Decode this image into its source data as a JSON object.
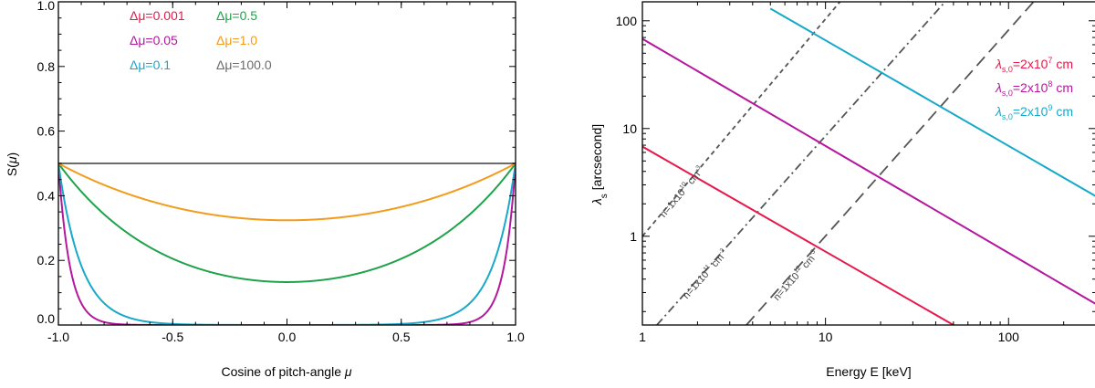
{
  "chart_data": [
    {
      "type": "line",
      "xlabel_text": "Cosine of pitch-angle ",
      "xlabel_symbol": "μ",
      "ylabel_text": "S(",
      "ylabel_symbol": "μ",
      "ylabel_close": ")",
      "xlim": [
        -1.0,
        1.0
      ],
      "ylim": [
        0.0,
        1.0
      ],
      "xscale": "linear",
      "yscale": "linear",
      "xticks": [
        -1.0,
        -0.5,
        0.0,
        0.5,
        1.0
      ],
      "xtick_labels": [
        "-1.0",
        "-0.5",
        "0.0",
        "0.5",
        "1.0"
      ],
      "yticks": [
        0.0,
        0.2,
        0.4,
        0.6,
        0.8,
        1.0
      ],
      "ytick_labels": [
        "0.0",
        "0.2",
        "0.4",
        "0.6",
        "0.8",
        "1.0"
      ],
      "grid": false,
      "legend_position": "top-center",
      "legend_symbol": "Δμ",
      "series": [
        {
          "name": "=0.001",
          "delta_mu": 0.001,
          "color": "#e6194b"
        },
        {
          "name": "=0.05",
          "delta_mu": 0.05,
          "color": "#b5179e"
        },
        {
          "name": "=0.1",
          "delta_mu": 0.1,
          "color": "#17a9c9"
        },
        {
          "name": "=0.5",
          "delta_mu": 0.5,
          "color": "#1ea34a"
        },
        {
          "name": "=1.0",
          "delta_mu": 1.0,
          "color": "#f29b1c"
        },
        {
          "name": "=100.0",
          "delta_mu": 100.0,
          "color": "#6b6b6b"
        }
      ]
    },
    {
      "type": "line",
      "xlabel": "Energy E [keV]",
      "ylabel_text": "[arcsecond]",
      "ylabel_symbol": "λ",
      "ylabel_sub": "s",
      "xlim": [
        1,
        300
      ],
      "ylim": [
        0.15,
        150
      ],
      "xscale": "log",
      "yscale": "log",
      "xticks": [
        1,
        10,
        100
      ],
      "xtick_labels": [
        "1",
        "10",
        "100"
      ],
      "yticks": [
        1,
        10,
        100
      ],
      "ytick_labels": [
        "1",
        "10",
        "100"
      ],
      "grid": false,
      "legend_position": "top-right",
      "series": [
        {
          "label_sym": "λ",
          "label_sub": "s,0",
          "label_text": "=2x10",
          "label_exp": "7",
          "label_unit": " cm",
          "color": "#e6194b",
          "points": [
            [
              1,
              6.8
            ],
            [
              50,
              0.15
            ]
          ]
        },
        {
          "label_sym": "λ",
          "label_sub": "s,0",
          "label_text": "=2x10",
          "label_exp": "8",
          "label_unit": " cm",
          "color": "#b5179e",
          "points": [
            [
              1,
              68
            ],
            [
              300,
              0.235
            ]
          ]
        },
        {
          "label_sym": "λ",
          "label_sub": "s,0",
          "label_text": "=2x10",
          "label_exp": "9",
          "label_unit": " cm",
          "color": "#17a9c9",
          "points": [
            [
              5,
              130
            ],
            [
              300,
              2.35
            ]
          ]
        }
      ],
      "density_lines": [
        {
          "text": "n=1x10",
          "exp": "10",
          "unit": " cm",
          "unit_exp": "-3",
          "dash": "5,4",
          "points": [
            [
              1,
              1.0
            ],
            [
              12,
              150
            ]
          ]
        },
        {
          "text": "n=1x10",
          "exp": "11",
          "unit": " cm",
          "unit_exp": "-3",
          "dash": "9,4,2,4",
          "points": [
            [
              1.2,
              0.15
            ],
            [
              45,
              150
            ]
          ]
        },
        {
          "text": "n=1x10",
          "exp": "12",
          "unit": " cm",
          "unit_exp": "-3",
          "dash": "13,7",
          "points": [
            [
              3.7,
              0.15
            ],
            [
              137,
              150
            ]
          ]
        }
      ]
    }
  ]
}
